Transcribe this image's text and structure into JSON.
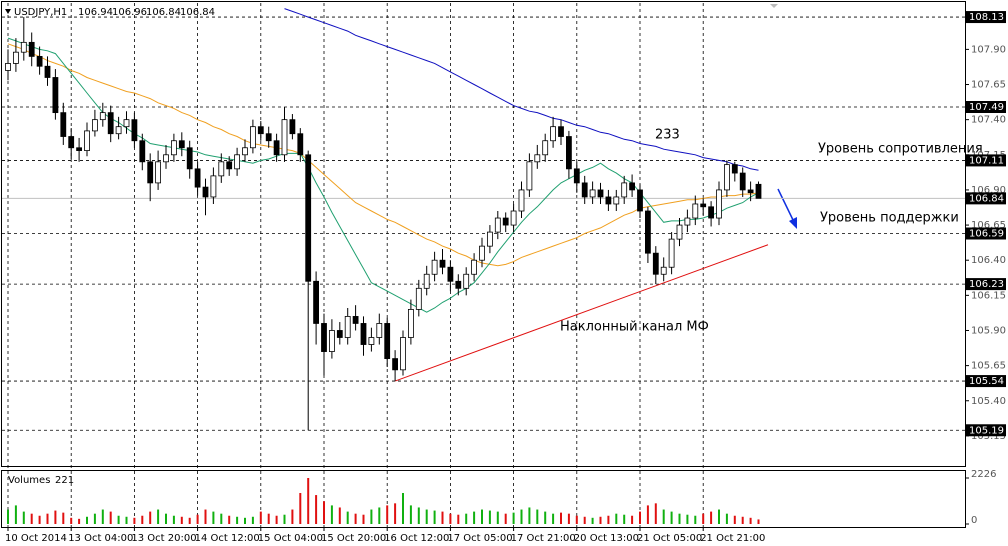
{
  "chart_data": {
    "type": "candlestick",
    "symbol": "USDJPY,H1",
    "categories": [
      "10 Oct 2014",
      null,
      null,
      null,
      null,
      null,
      null,
      null,
      "13 Oct 04:00",
      null,
      null,
      null,
      null,
      null,
      null,
      null,
      "13 Oct 20:00",
      null,
      null,
      null,
      null,
      null,
      null,
      null,
      "14 Oct 12:00",
      null,
      null,
      null,
      null,
      null,
      null,
      null,
      "15 Oct 04:00",
      null,
      null,
      null,
      null,
      null,
      null,
      null,
      "15 Oct 20:00",
      null,
      null,
      null,
      null,
      null,
      null,
      null,
      "16 Oct 12:00",
      null,
      null,
      null,
      null,
      null,
      null,
      null,
      "17 Oct 05:00",
      null,
      null,
      null,
      null,
      null,
      null,
      null,
      "17 Oct 21:00",
      null,
      null,
      null,
      null,
      null,
      null,
      null,
      "20 Oct 13:00",
      null,
      null,
      null,
      null,
      null,
      null,
      null,
      "21 Oct 05:00",
      null,
      null,
      null,
      null,
      null,
      null,
      null,
      "21 Oct 21:00",
      null,
      null,
      null,
      null,
      null,
      null,
      null
    ],
    "open": [
      107.75,
      107.8,
      107.88,
      107.95,
      107.85,
      107.78,
      107.7,
      107.45,
      107.28,
      107.2,
      107.18,
      107.32,
      107.4,
      107.45,
      107.3,
      107.35,
      107.4,
      107.25,
      107.1,
      106.95,
      107.1,
      107.15,
      107.25,
      107.2,
      107.05,
      106.92,
      106.85,
      107.0,
      107.1,
      107.05,
      107.15,
      107.2,
      107.35,
      107.3,
      107.25,
      107.15,
      107.4,
      107.3,
      107.15,
      106.25,
      105.95,
      105.75,
      105.9,
      105.85,
      106.0,
      105.95,
      105.8,
      105.85,
      105.95,
      105.7,
      105.62,
      105.85,
      106.05,
      106.2,
      106.3,
      106.4,
      106.35,
      106.25,
      106.2,
      106.3,
      106.4,
      106.5,
      106.6,
      106.7,
      106.65,
      106.75,
      106.9,
      107.1,
      107.15,
      107.25,
      107.35,
      107.28,
      107.05,
      106.95,
      106.85,
      106.9,
      106.85,
      106.8,
      106.85,
      106.95,
      106.9,
      106.75,
      106.45,
      106.3,
      106.35,
      106.55,
      106.65,
      106.7,
      106.8,
      106.78,
      106.7,
      106.9,
      107.08,
      107.02,
      106.9,
      106.94
    ],
    "high": [
      107.9,
      107.98,
      108.13,
      108.02,
      107.92,
      107.85,
      107.76,
      107.52,
      107.34,
      107.27,
      107.38,
      107.47,
      107.52,
      107.5,
      107.42,
      107.46,
      107.45,
      107.3,
      107.16,
      107.18,
      107.22,
      107.3,
      107.31,
      107.25,
      107.1,
      106.98,
      107.06,
      107.16,
      107.14,
      107.2,
      107.26,
      107.4,
      107.39,
      107.35,
      107.3,
      107.49,
      107.44,
      107.34,
      107.18,
      106.32,
      106.02,
      105.98,
      105.96,
      106.06,
      106.08,
      106.0,
      105.92,
      106.02,
      105.99,
      105.76,
      105.9,
      106.12,
      106.26,
      106.36,
      106.46,
      106.48,
      106.4,
      106.3,
      106.35,
      106.45,
      106.56,
      106.65,
      106.75,
      106.74,
      106.8,
      106.96,
      107.16,
      107.22,
      107.3,
      107.42,
      107.4,
      107.32,
      107.1,
      107.0,
      106.96,
      106.95,
      106.9,
      106.9,
      107.0,
      107.01,
      106.94,
      106.78,
      106.5,
      106.42,
      106.6,
      106.7,
      106.76,
      106.86,
      106.84,
      106.82,
      106.96,
      107.11,
      107.1,
      107.06,
      106.96,
      106.96
    ],
    "low": [
      107.68,
      107.74,
      107.82,
      107.78,
      107.72,
      107.64,
      107.4,
      107.22,
      107.12,
      107.1,
      107.14,
      107.28,
      107.35,
      107.24,
      107.26,
      107.3,
      107.2,
      107.04,
      106.82,
      106.9,
      107.05,
      107.1,
      107.14,
      106.98,
      106.86,
      106.72,
      106.8,
      106.95,
      107.0,
      107.0,
      107.1,
      107.16,
      107.25,
      107.2,
      107.1,
      107.1,
      107.26,
      107.1,
      105.19,
      105.8,
      105.58,
      105.7,
      105.8,
      105.8,
      105.9,
      105.72,
      105.75,
      105.8,
      105.64,
      105.54,
      105.58,
      105.8,
      106.0,
      106.15,
      106.25,
      106.3,
      106.18,
      106.15,
      106.15,
      106.25,
      106.35,
      106.45,
      106.55,
      106.6,
      106.6,
      106.7,
      106.85,
      107.05,
      107.1,
      107.2,
      107.22,
      106.98,
      106.88,
      106.8,
      106.8,
      106.8,
      106.75,
      106.75,
      106.8,
      106.85,
      106.7,
      106.38,
      106.23,
      106.25,
      106.3,
      106.5,
      106.6,
      106.65,
      106.72,
      106.64,
      106.65,
      106.85,
      106.96,
      106.85,
      106.82,
      106.84
    ],
    "close": [
      107.8,
      107.88,
      107.95,
      107.85,
      107.78,
      107.7,
      107.45,
      107.28,
      107.2,
      107.18,
      107.32,
      107.4,
      107.45,
      107.3,
      107.35,
      107.4,
      107.25,
      107.1,
      106.95,
      107.1,
      107.15,
      107.25,
      107.2,
      107.05,
      106.92,
      106.85,
      107.0,
      107.1,
      107.05,
      107.15,
      107.2,
      107.35,
      107.3,
      107.25,
      107.15,
      107.4,
      107.3,
      107.15,
      106.25,
      105.95,
      105.75,
      105.9,
      105.85,
      106.0,
      105.95,
      105.8,
      105.85,
      105.95,
      105.7,
      105.62,
      105.85,
      106.05,
      106.2,
      106.3,
      106.4,
      106.35,
      106.25,
      106.2,
      106.3,
      106.4,
      106.5,
      106.6,
      106.7,
      106.65,
      106.75,
      106.9,
      107.1,
      107.15,
      107.25,
      107.35,
      107.28,
      107.05,
      106.95,
      106.85,
      106.9,
      106.85,
      106.8,
      106.85,
      106.95,
      106.9,
      106.75,
      106.45,
      106.3,
      106.35,
      106.55,
      106.65,
      106.7,
      106.8,
      106.78,
      106.7,
      106.9,
      107.08,
      107.02,
      106.9,
      106.88,
      106.84
    ],
    "volume_label": "Volumes",
    "volumes": [
      700,
      900,
      600,
      500,
      400,
      500,
      650,
      550,
      300,
      250,
      350,
      500,
      700,
      600,
      400,
      350,
      300,
      400,
      600,
      700,
      500,
      400,
      350,
      300,
      450,
      700,
      600,
      500,
      400,
      350,
      300,
      350,
      600,
      500,
      400,
      450,
      700,
      1500,
      2226,
      1400,
      1100,
      900,
      800,
      600,
      500,
      450,
      700,
      800,
      900,
      1000,
      1500,
      900,
      800,
      700,
      650,
      600,
      500,
      450,
      500,
      600,
      700,
      650,
      600,
      500,
      550,
      700,
      800,
      700,
      600,
      500,
      550,
      500,
      400,
      350,
      300,
      350,
      400,
      500,
      450,
      400,
      600,
      900,
      1000,
      700,
      600,
      500,
      450,
      400,
      500,
      600,
      700,
      500,
      400,
      350,
      300,
      221
    ],
    "volume_ylim": [
      0,
      2226
    ],
    "volume_yticks": [
      0,
      2226
    ],
    "ma_lines": [
      {
        "color": "#1010c0",
        "values": [
          null,
          null,
          null,
          null,
          null,
          null,
          null,
          null,
          null,
          null,
          null,
          null,
          null,
          null,
          null,
          null,
          null,
          null,
          null,
          null,
          null,
          null,
          null,
          null,
          null,
          null,
          null,
          null,
          null,
          null,
          null,
          null,
          null,
          null,
          null,
          108.19,
          108.17,
          108.15,
          108.13,
          108.11,
          108.09,
          108.07,
          108.05,
          108.03,
          108.0,
          107.98,
          107.96,
          107.94,
          107.92,
          107.9,
          107.88,
          107.86,
          107.84,
          107.82,
          107.8,
          107.77,
          107.74,
          107.71,
          107.68,
          107.65,
          107.62,
          107.59,
          107.56,
          107.53,
          107.5,
          107.48,
          107.46,
          107.45,
          107.43,
          107.41,
          107.4,
          107.38,
          107.36,
          107.35,
          107.33,
          107.31,
          107.3,
          107.28,
          107.26,
          107.25,
          107.23,
          107.22,
          107.21,
          107.19,
          107.18,
          107.17,
          107.16,
          107.15,
          107.13,
          107.12,
          107.11,
          107.1,
          107.08,
          107.07,
          107.05,
          107.04
        ]
      },
      {
        "color": "#f0a020",
        "values": [
          107.94,
          107.92,
          107.9,
          107.87,
          107.85,
          107.82,
          107.8,
          107.78,
          107.75,
          107.73,
          107.7,
          107.68,
          107.66,
          107.64,
          107.62,
          107.6,
          107.59,
          107.57,
          107.55,
          107.52,
          107.5,
          107.48,
          107.45,
          107.43,
          107.4,
          107.38,
          107.35,
          107.33,
          107.3,
          107.28,
          107.25,
          107.23,
          107.22,
          107.21,
          107.2,
          107.19,
          107.18,
          107.16,
          107.11,
          107.06,
          107.01,
          106.96,
          106.91,
          106.86,
          106.81,
          106.78,
          106.75,
          106.72,
          106.69,
          106.67,
          106.64,
          106.61,
          106.58,
          106.55,
          106.53,
          106.5,
          106.48,
          106.45,
          106.43,
          106.4,
          106.38,
          106.37,
          106.36,
          106.37,
          106.39,
          106.42,
          106.44,
          106.46,
          106.48,
          106.5,
          106.52,
          106.54,
          106.56,
          106.59,
          106.61,
          106.63,
          106.66,
          106.69,
          106.72,
          106.74,
          106.77,
          106.78,
          106.79,
          106.8,
          106.81,
          106.82,
          106.83,
          106.83,
          106.84,
          106.85,
          106.85,
          106.86,
          106.86,
          106.87,
          106.87,
          106.88
        ]
      },
      {
        "color": "#20a070",
        "values": [
          107.98,
          107.96,
          107.94,
          107.92,
          107.9,
          107.89,
          107.87,
          107.8,
          107.73,
          107.66,
          107.59,
          107.52,
          107.45,
          107.41,
          107.38,
          107.34,
          107.3,
          107.27,
          107.23,
          107.22,
          107.21,
          107.2,
          107.19,
          107.18,
          107.17,
          107.15,
          107.14,
          107.13,
          107.12,
          107.11,
          107.1,
          107.09,
          107.11,
          107.12,
          107.14,
          107.16,
          107.16,
          107.16,
          107.06,
          106.95,
          106.85,
          106.74,
          106.64,
          106.54,
          106.44,
          106.34,
          106.24,
          106.21,
          106.18,
          106.15,
          106.12,
          106.09,
          106.06,
          106.03,
          106.06,
          106.1,
          106.13,
          106.17,
          106.2,
          106.24,
          106.31,
          106.38,
          106.46,
          106.53,
          106.6,
          106.67,
          106.73,
          106.78,
          106.84,
          106.9,
          106.95,
          106.98,
          107.01,
          107.04,
          107.06,
          107.09,
          107.05,
          107.02,
          106.98,
          106.95,
          106.88,
          106.81,
          106.74,
          106.67,
          106.68,
          106.68,
          106.69,
          106.69,
          106.7,
          106.72,
          106.74,
          106.77,
          106.79,
          106.81,
          106.85,
          106.88
        ]
      }
    ],
    "trend_line": {
      "color": "#e01010",
      "from": 105.54,
      "to": 106.51
    },
    "levels": [
      108.13,
      107.49,
      107.11,
      106.59,
      106.23,
      105.54,
      105.19
    ],
    "ylim": [
      104.95,
      108.23
    ],
    "yticks": [
      105.15,
      {
        "value": 105.4,
        "label": "105.40"
      },
      105.65,
      {
        "value": 105.9,
        "label": "105.90"
      },
      106.15,
      {
        "value": 106.4,
        "label": "106.40"
      },
      106.65,
      {
        "value": 106.9,
        "label": "106.90"
      },
      107.15,
      {
        "value": 107.4,
        "label": "107.40"
      },
      107.65,
      {
        "value": 107.9,
        "label": "107.90"
      }
    ],
    "grid": true,
    "candle_stroke": "#000000",
    "up_fill": "#ffffff",
    "down_fill": "#000000",
    "volume_up_color": "#10b010",
    "volume_down_color": "#e01010",
    "annotations": [
      "233",
      "Уровень сопротивления",
      "Уровень поддержки",
      "Наклонный канал МФ"
    ]
  }
}
